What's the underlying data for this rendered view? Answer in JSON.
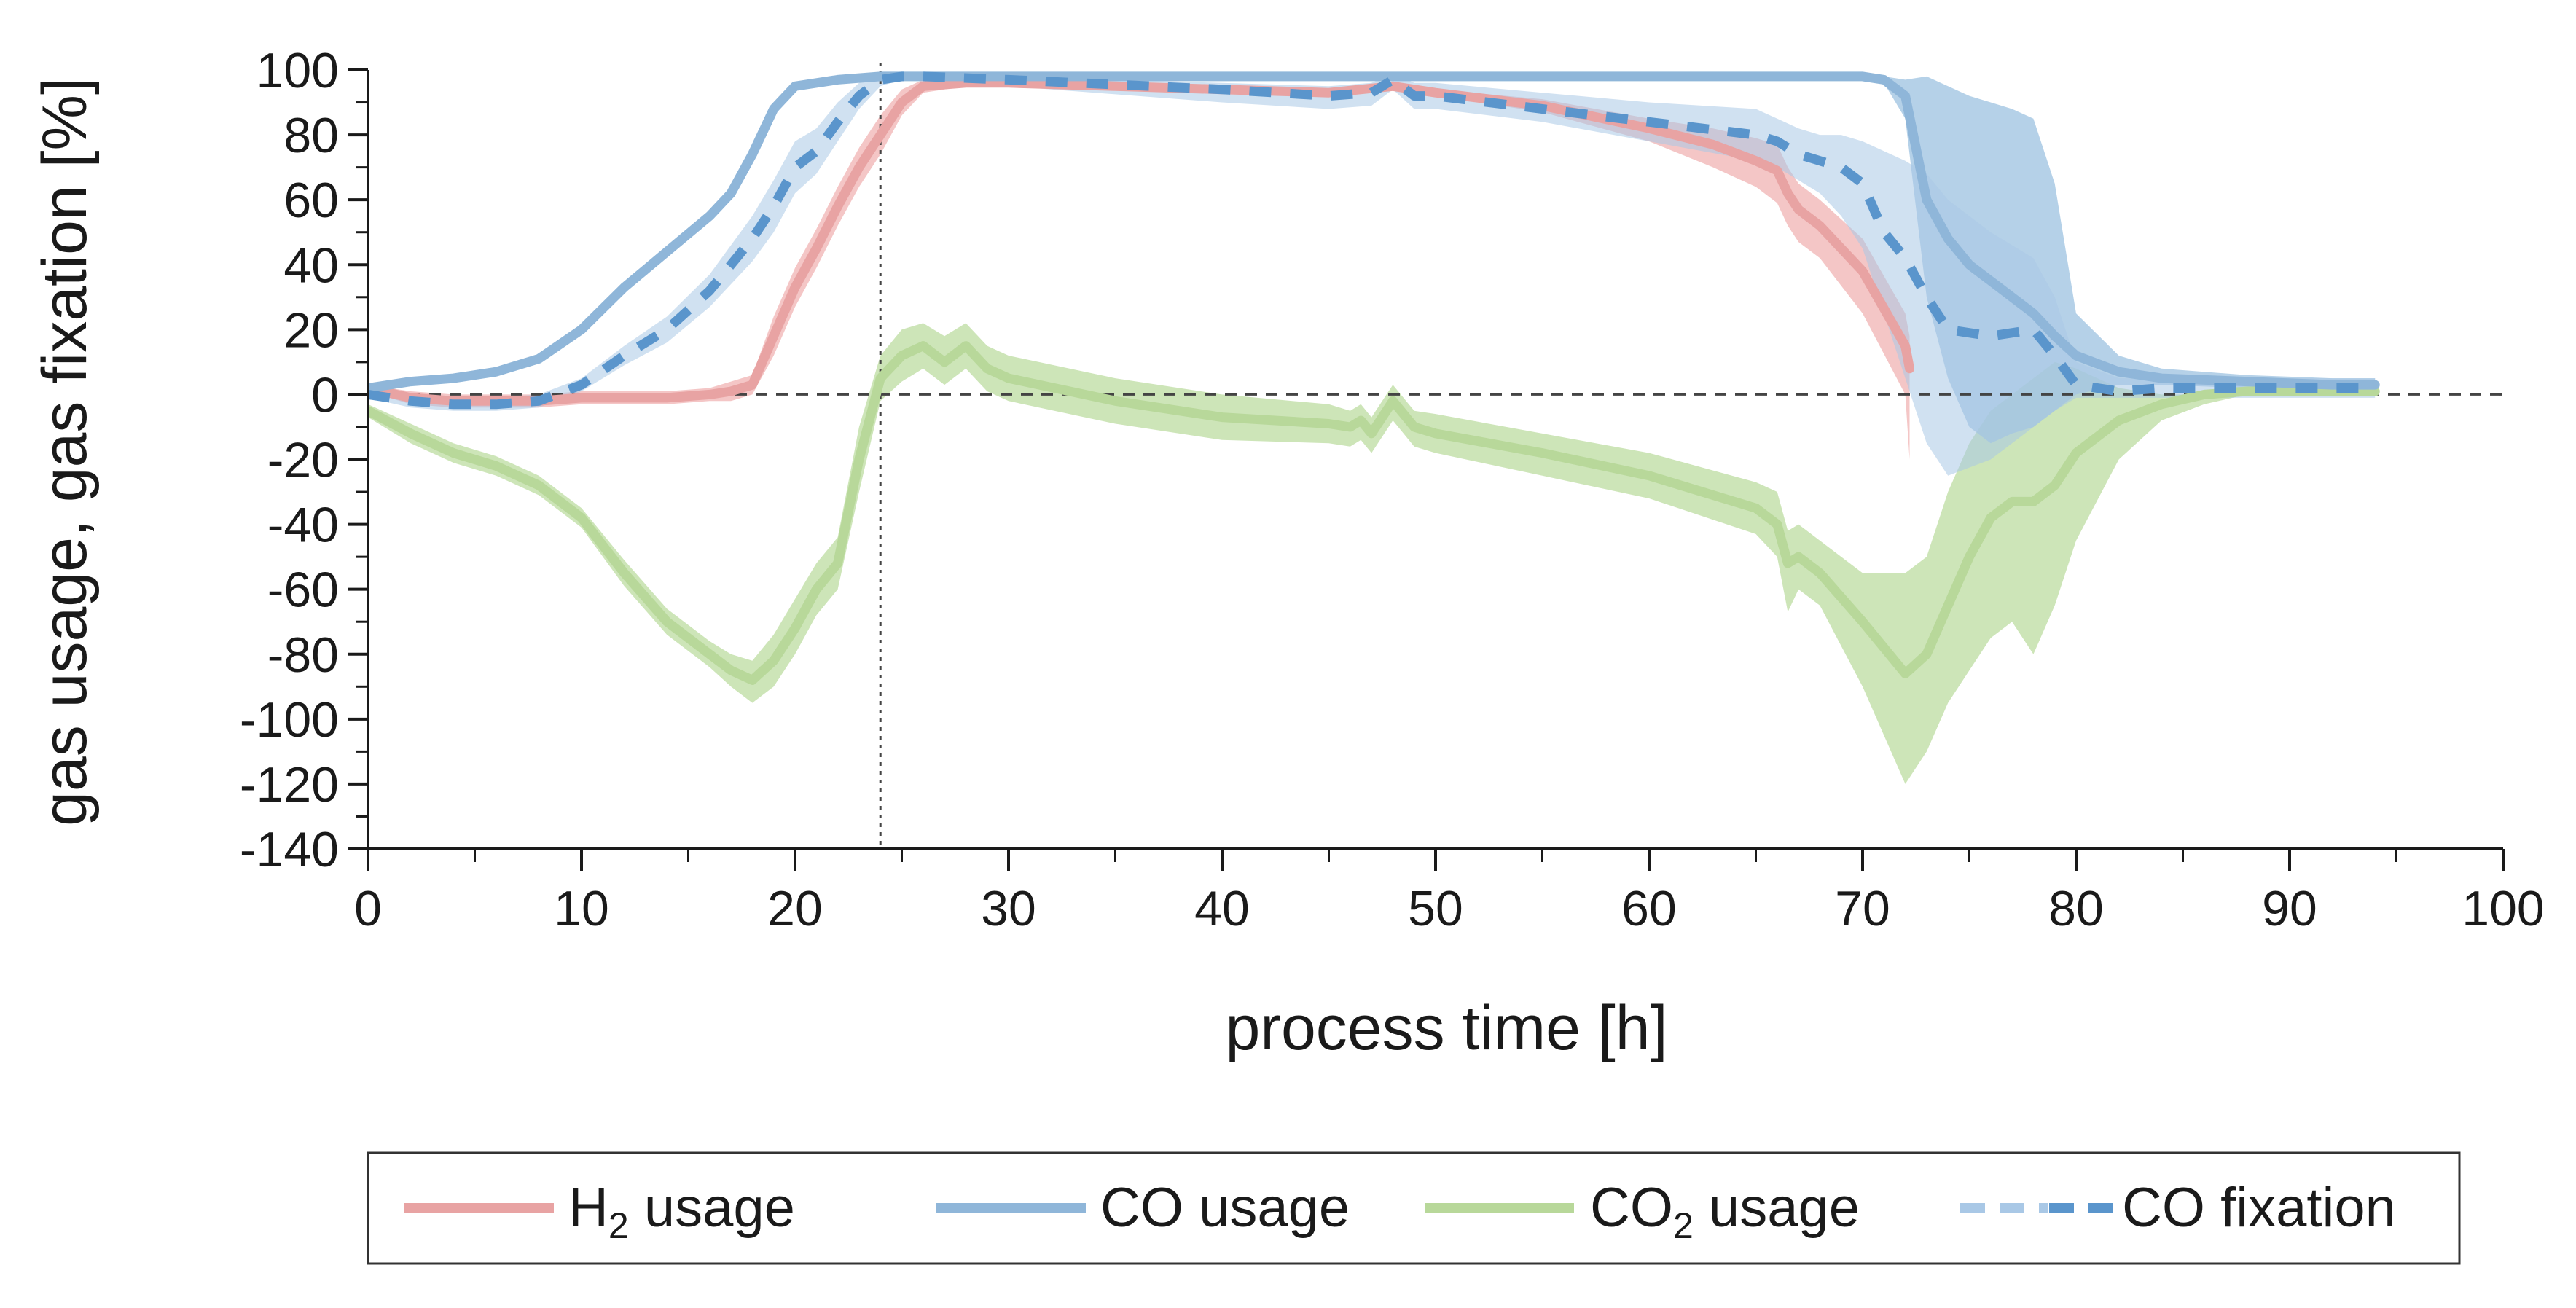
{
  "chart_data": {
    "type": "line",
    "title": "",
    "xlabel": "process time [h]",
    "ylabel": "gas usage, gas fixation [%]",
    "xlim": [
      0,
      100
    ],
    "ylim": [
      -140,
      100
    ],
    "x_ticks": [
      "0",
      "10",
      "20",
      "30",
      "40",
      "50",
      "60",
      "70",
      "80",
      "90",
      "100"
    ],
    "y_ticks": [
      "100",
      "80",
      "60",
      "40",
      "20",
      "0",
      "-20",
      "-40",
      "-60",
      "-80",
      "-100",
      "-120",
      "-140"
    ],
    "reference_lines": [
      {
        "name": "zero-line",
        "axis": "y",
        "value": 0,
        "style": "dashed"
      },
      {
        "name": "time-24h-line",
        "axis": "x",
        "value": 24,
        "style": "dotted"
      }
    ],
    "legend_position": "bottom",
    "series": [
      {
        "id": "h2",
        "name": "H",
        "name_sub": "2",
        "name_tail": " usage",
        "color": "#e8a3a3",
        "band_color": "#f0b3b3",
        "style": "solid",
        "x": [
          0,
          2,
          4,
          6,
          8,
          10,
          12,
          14,
          16,
          17,
          18,
          19,
          20,
          21,
          22,
          23,
          24,
          25,
          26,
          28,
          30,
          35,
          40,
          45,
          48,
          50,
          55,
          60,
          63,
          65,
          66,
          66.5,
          67,
          68,
          70,
          72,
          72.2
        ],
        "mean": [
          2,
          -1,
          -2,
          -2,
          -2,
          -1,
          -1,
          -1,
          0,
          1,
          3,
          18,
          33,
          45,
          58,
          70,
          80,
          90,
          95,
          96,
          96,
          95,
          94,
          93,
          95,
          93,
          89,
          82,
          77,
          72,
          69,
          62,
          57,
          52,
          38,
          15,
          8
        ],
        "upper": [
          3,
          1,
          0,
          0,
          0,
          1,
          1,
          1,
          2,
          4,
          6,
          24,
          39,
          51,
          64,
          76,
          86,
          94,
          97,
          97,
          97,
          96,
          95,
          94,
          96,
          94,
          91,
          85,
          82,
          79,
          77,
          70,
          65,
          60,
          48,
          25,
          18
        ],
        "lower": [
          1,
          -3,
          -4,
          -4,
          -4,
          -3,
          -3,
          -3,
          -2,
          -2,
          0,
          12,
          27,
          39,
          52,
          64,
          74,
          86,
          93,
          95,
          95,
          94,
          93,
          92,
          94,
          92,
          87,
          78,
          70,
          64,
          59,
          52,
          47,
          42,
          25,
          0,
          -20
        ]
      },
      {
        "id": "co",
        "name": "CO",
        "name_sub": "",
        "name_tail": " usage",
        "color": "#8fb6d9",
        "band_color": "#9cc1e0",
        "style": "solid",
        "x": [
          0,
          2,
          4,
          6,
          8,
          10,
          12,
          14,
          16,
          17,
          18,
          19,
          20,
          22,
          24,
          30,
          40,
          50,
          60,
          70,
          71,
          72,
          73,
          74,
          75,
          76,
          77,
          78,
          79,
          80,
          82,
          84,
          88,
          92,
          94
        ],
        "mean": [
          2,
          4,
          5,
          7,
          11,
          20,
          33,
          44,
          55,
          62,
          74,
          88,
          95,
          97,
          98,
          98,
          98,
          98,
          98,
          98,
          97,
          92,
          60,
          48,
          40,
          35,
          30,
          25,
          18,
          12,
          7,
          5,
          4,
          3,
          3
        ],
        "upper": [
          3,
          5,
          6,
          8,
          12,
          21,
          34,
          45,
          56,
          63,
          75,
          89,
          96,
          98,
          99,
          99,
          99,
          99,
          99,
          99,
          98,
          97,
          98,
          95,
          92,
          90,
          88,
          85,
          65,
          25,
          12,
          8,
          6,
          5,
          5
        ],
        "lower": [
          1,
          3,
          4,
          6,
          10,
          19,
          32,
          43,
          54,
          61,
          73,
          87,
          94,
          96,
          97,
          97,
          97,
          97,
          97,
          97,
          96,
          85,
          30,
          5,
          -10,
          -15,
          -12,
          -10,
          -5,
          0,
          3,
          3,
          2,
          1,
          1
        ]
      },
      {
        "id": "co2",
        "name": "CO",
        "name_sub": "2",
        "name_tail": " usage",
        "color": "#b8d89a",
        "band_color": "#bcdca0",
        "style": "solid",
        "x": [
          0,
          2,
          4,
          6,
          8,
          10,
          12,
          14,
          16,
          17,
          18,
          19,
          20,
          21,
          22,
          23,
          24,
          25,
          26,
          27,
          28,
          29,
          30,
          35,
          40,
          45,
          46,
          46.5,
          47,
          48,
          49,
          50,
          55,
          60,
          65,
          66,
          66.5,
          67,
          68,
          70,
          72,
          73,
          74,
          75,
          76,
          77,
          78,
          79,
          80,
          82,
          84,
          86,
          88,
          90,
          92,
          94
        ],
        "mean": [
          -5,
          -12,
          -18,
          -22,
          -28,
          -38,
          -55,
          -70,
          -80,
          -85,
          -88,
          -82,
          -72,
          -60,
          -52,
          -20,
          5,
          12,
          15,
          10,
          15,
          8,
          5,
          -2,
          -7,
          -9,
          -10,
          -8,
          -12,
          -2,
          -10,
          -12,
          -18,
          -25,
          -35,
          -40,
          -52,
          -50,
          -55,
          -70,
          -86,
          -80,
          -65,
          -50,
          -38,
          -33,
          -33,
          -28,
          -18,
          -8,
          -3,
          0,
          1,
          1,
          1,
          1
        ],
        "upper": [
          -3,
          -9,
          -15,
          -19,
          -25,
          -35,
          -51,
          -66,
          -76,
          -80,
          -82,
          -74,
          -63,
          -52,
          -44,
          -10,
          12,
          20,
          22,
          18,
          22,
          15,
          12,
          5,
          0,
          -3,
          -5,
          -3,
          -7,
          3,
          -5,
          -6,
          -12,
          -18,
          -27,
          -30,
          -42,
          -40,
          -45,
          -55,
          -55,
          -50,
          -30,
          -15,
          -5,
          0,
          5,
          10,
          8,
          2,
          0,
          0,
          1,
          1,
          1,
          1
        ],
        "lower": [
          -7,
          -15,
          -21,
          -25,
          -31,
          -41,
          -59,
          -74,
          -84,
          -90,
          -95,
          -90,
          -80,
          -68,
          -60,
          -30,
          -2,
          4,
          8,
          3,
          8,
          1,
          -2,
          -9,
          -14,
          -15,
          -16,
          -14,
          -18,
          -8,
          -16,
          -18,
          -25,
          -32,
          -43,
          -50,
          -67,
          -60,
          -65,
          -90,
          -120,
          -110,
          -95,
          -85,
          -75,
          -70,
          -80,
          -65,
          -45,
          -20,
          -8,
          -3,
          0,
          0,
          0,
          0
        ]
      },
      {
        "id": "cofix",
        "name": "CO fixation",
        "name_sub": "",
        "name_tail": "",
        "color": "#5a95cc",
        "band_color": "#a9c8e6",
        "style": "dashed",
        "x": [
          0,
          2,
          4,
          6,
          8,
          10,
          12,
          14,
          16,
          17,
          18,
          19,
          20,
          21,
          22,
          23,
          24,
          25,
          26,
          30,
          40,
          45,
          47,
          48,
          49,
          50,
          55,
          60,
          65,
          66,
          67,
          68,
          69,
          70,
          71,
          72,
          73,
          74,
          76,
          78,
          79,
          80,
          82,
          84,
          88,
          92,
          94
        ],
        "mean": [
          0,
          -2,
          -3,
          -3,
          -2,
          3,
          12,
          20,
          32,
          40,
          48,
          58,
          70,
          75,
          84,
          92,
          97,
          98,
          98,
          97,
          94,
          92,
          93,
          97,
          92,
          92,
          88,
          84,
          80,
          78,
          74,
          72,
          70,
          65,
          50,
          42,
          30,
          20,
          18,
          20,
          12,
          3,
          1,
          2,
          2,
          2,
          2
        ],
        "upper": [
          1,
          0,
          -1,
          -1,
          0,
          5,
          15,
          24,
          37,
          46,
          55,
          66,
          78,
          82,
          90,
          96,
          99,
          99,
          99,
          98,
          96,
          95,
          96,
          99,
          96,
          96,
          93,
          90,
          88,
          85,
          82,
          80,
          80,
          78,
          75,
          72,
          68,
          60,
          50,
          42,
          30,
          10,
          5,
          5,
          5,
          5,
          5
        ],
        "lower": [
          -1,
          -4,
          -5,
          -5,
          -4,
          1,
          9,
          16,
          27,
          34,
          41,
          50,
          62,
          68,
          78,
          88,
          95,
          97,
          97,
          95,
          90,
          88,
          89,
          94,
          88,
          88,
          84,
          78,
          72,
          70,
          66,
          62,
          55,
          45,
          25,
          5,
          -15,
          -25,
          -20,
          -10,
          -5,
          -1,
          -1,
          -1,
          -1,
          -1,
          -1
        ]
      }
    ]
  }
}
